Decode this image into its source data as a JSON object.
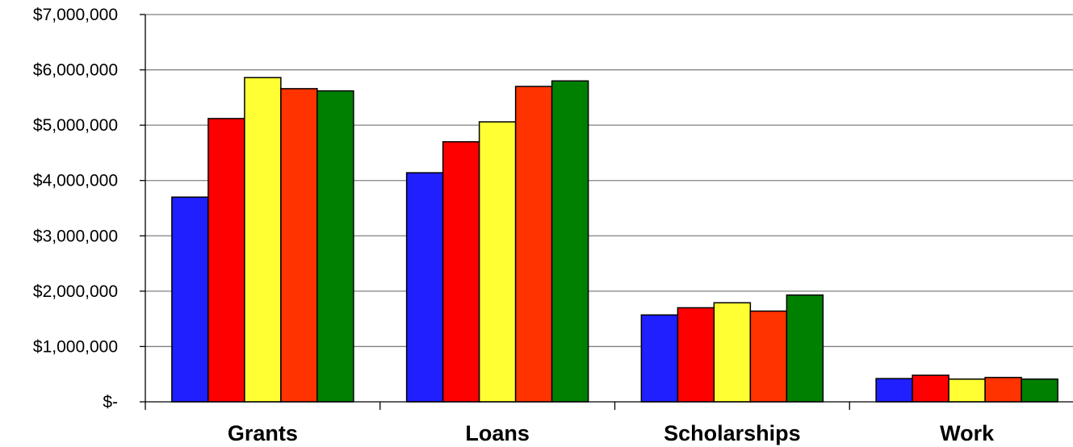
{
  "chart_data": {
    "type": "bar",
    "categories": [
      "Grants",
      "Loans",
      "Scholarships",
      "Work"
    ],
    "series": [
      {
        "color": "#1f1fff",
        "values": [
          3700000,
          4140000,
          1570000,
          420000
        ]
      },
      {
        "color": "#ff0000",
        "values": [
          5120000,
          4700000,
          1700000,
          480000
        ]
      },
      {
        "color": "#ffff33",
        "values": [
          5860000,
          5060000,
          1790000,
          410000
        ]
      },
      {
        "color": "#ff3300",
        "values": [
          5660000,
          5700000,
          1640000,
          440000
        ]
      },
      {
        "color": "#008000",
        "values": [
          5620000,
          5800000,
          1930000,
          410000
        ]
      }
    ],
    "ylim": [
      0,
      7000000
    ],
    "yticks": [
      0,
      1000000,
      2000000,
      3000000,
      4000000,
      5000000,
      6000000,
      7000000
    ],
    "ytick_labels": [
      "$-",
      "$1,000,000",
      "$2,000,000",
      "$3,000,000",
      "$4,000,000",
      "$5,000,000",
      "$6,000,000",
      "$7,000,000"
    ],
    "grid": true,
    "legend": "none"
  }
}
